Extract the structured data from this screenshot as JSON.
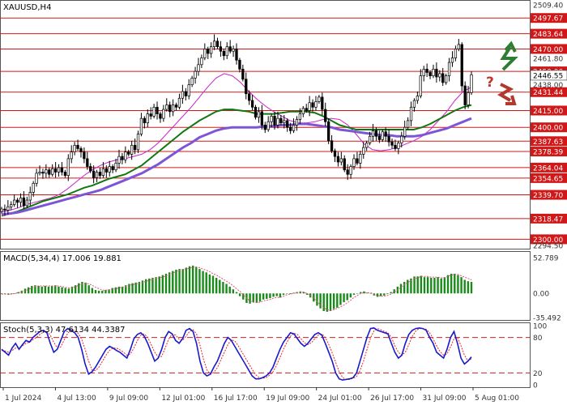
{
  "chart_data": [
    {
      "type": "line",
      "chart_role": "candlestick price chart",
      "title": "XAUUSD,H4",
      "ylim": [
        2294.5,
        2509.4
      ],
      "axis_ticks": [
        "2509.40",
        "2461.80",
        "2438.00",
        "2294.50"
      ],
      "highlighted_levels": [
        {
          "value": 2497.67,
          "label": "2497.67"
        },
        {
          "value": 2483.64,
          "label": "2483.64"
        },
        {
          "value": 2470.0,
          "label": "2470.00"
        },
        {
          "value": 2450.0,
          "label": "2450.00"
        },
        {
          "value": 2431.44,
          "label": "2431.44"
        },
        {
          "value": 2415.0,
          "label": "2415.00"
        },
        {
          "value": 2400.0,
          "label": "2400.00"
        },
        {
          "value": 2387.63,
          "label": "2387.63"
        },
        {
          "value": 2378.39,
          "label": "2378.39"
        },
        {
          "value": 2364.04,
          "label": "2364.04"
        },
        {
          "value": 2354.65,
          "label": "2354.65"
        },
        {
          "value": 2339.7,
          "label": "2339.70"
        },
        {
          "value": 2318.47,
          "label": "2318.47"
        },
        {
          "value": 2300.0,
          "label": "2300.00"
        }
      ],
      "current_price": {
        "value": 2446.5,
        "label": "2446.55"
      },
      "x_labels": [
        "1 Jul 2024",
        "4 Jul 13:00",
        "9 Jul 09:00",
        "12 Jul 01:00",
        "16 Jul 17:00",
        "19 Jul 09:00",
        "24 Jul 01:00",
        "26 Jul 17:00",
        "31 Jul 09:00",
        "5 Aug 01:00"
      ],
      "close_series": [
        2327,
        2326,
        2329,
        2331,
        2335,
        2333,
        2337,
        2330,
        2335,
        2342,
        2350,
        2359,
        2360,
        2359,
        2362,
        2358,
        2363,
        2360,
        2364,
        2360,
        2357,
        2372,
        2378,
        2384,
        2381,
        2378,
        2372,
        2365,
        2361,
        2355,
        2360,
        2357,
        2363,
        2360,
        2365,
        2362,
        2368,
        2374,
        2371,
        2378,
        2376,
        2384,
        2380,
        2394,
        2408,
        2404,
        2412,
        2410,
        2418,
        2412,
        2408,
        2416,
        2420,
        2414,
        2420,
        2418,
        2426,
        2432,
        2428,
        2438,
        2444,
        2450,
        2456,
        2462,
        2470,
        2466,
        2472,
        2477,
        2472,
        2468,
        2464,
        2472,
        2468,
        2470,
        2460,
        2452,
        2443,
        2430,
        2424,
        2418,
        2409,
        2414,
        2402,
        2398,
        2405,
        2410,
        2402,
        2408,
        2404,
        2406,
        2400,
        2397,
        2402,
        2407,
        2412,
        2417,
        2415,
        2422,
        2418,
        2423,
        2427,
        2416,
        2405,
        2388,
        2379,
        2374,
        2369,
        2372,
        2362,
        2358,
        2365,
        2372,
        2368,
        2376,
        2382,
        2386,
        2392,
        2397,
        2392,
        2389,
        2396,
        2392,
        2387,
        2384,
        2381,
        2386,
        2392,
        2400,
        2406,
        2418,
        2424,
        2428,
        2446,
        2452,
        2449,
        2446,
        2452,
        2445,
        2448,
        2440,
        2446,
        2458,
        2462,
        2470,
        2474,
        2437,
        2420,
        2431,
        2447
      ],
      "ma_lines": [
        {
          "color": "#cc22cc",
          "values": [
            2324,
            2326,
            2328,
            2331,
            2333,
            2335,
            2337,
            2340,
            2345,
            2351,
            2357,
            2362,
            2366,
            2369,
            2371,
            2372,
            2374,
            2376,
            2380,
            2386,
            2394,
            2402,
            2410,
            2418,
            2427,
            2436,
            2444,
            2448,
            2446,
            2440,
            2432,
            2425,
            2419,
            2414,
            2410,
            2406,
            2404,
            2404,
            2405,
            2407,
            2408,
            2407,
            2402,
            2394,
            2385,
            2380,
            2379,
            2380,
            2382,
            2385,
            2388,
            2392,
            2398,
            2406,
            2414,
            2424,
            2432,
            2436
          ]
        },
        {
          "color": "#117711",
          "values": [
            2321,
            2323,
            2325,
            2328,
            2331,
            2334,
            2336,
            2338,
            2340,
            2343,
            2346,
            2348,
            2351,
            2354,
            2356,
            2358,
            2362,
            2366,
            2372,
            2378,
            2384,
            2390,
            2396,
            2401,
            2406,
            2410,
            2414,
            2416,
            2416,
            2415,
            2414,
            2412,
            2412,
            2412,
            2413,
            2414,
            2414,
            2414,
            2413,
            2410,
            2406,
            2402,
            2400,
            2398,
            2398,
            2398,
            2398,
            2398,
            2398,
            2398,
            2398,
            2400,
            2403,
            2407,
            2411,
            2415,
            2418,
            2420
          ]
        },
        {
          "color": "#7e55d6",
          "values": [
            2322,
            2323,
            2324,
            2326,
            2328,
            2330,
            2332,
            2334,
            2336,
            2338,
            2340,
            2342,
            2344,
            2347,
            2350,
            2353,
            2356,
            2359,
            2363,
            2367,
            2372,
            2377,
            2382,
            2386,
            2391,
            2394,
            2397,
            2399,
            2400,
            2400,
            2400,
            2400,
            2401,
            2401,
            2402,
            2402,
            2403,
            2403,
            2402,
            2401,
            2400,
            2398,
            2397,
            2396,
            2395,
            2394,
            2393,
            2393,
            2392,
            2392,
            2392,
            2393,
            2395,
            2397,
            2399,
            2402,
            2405,
            2408
          ]
        }
      ]
    },
    {
      "type": "bar",
      "chart_role": "oscillator",
      "title": "MACD(5,34,4) 17.006 19.881",
      "ylim": [
        -35.492,
        52.789
      ],
      "axis_ticks": [
        "52.789",
        "0.00",
        "-35.492"
      ],
      "values": [
        -1,
        -1,
        -2,
        -1,
        0,
        2,
        4,
        7,
        9,
        11,
        12,
        11,
        10,
        11,
        10,
        11,
        12,
        10,
        9,
        8,
        7,
        10,
        12,
        15,
        17,
        16,
        12,
        8,
        5,
        4,
        4,
        5,
        6,
        8,
        9,
        10,
        10,
        12,
        14,
        15,
        16,
        17,
        19,
        21,
        22,
        23,
        24,
        25,
        27,
        29,
        31,
        33,
        35,
        36,
        36,
        38,
        40,
        41,
        39,
        36,
        33,
        31,
        28,
        26,
        23,
        20,
        17,
        14,
        10,
        6,
        2,
        -4,
        -9,
        -14,
        -15,
        -13,
        -14,
        -12,
        -9,
        -8,
        -7,
        -5,
        -4,
        -6,
        -2,
        0,
        -1,
        1,
        2,
        3,
        2,
        -2,
        -6,
        -12,
        -18,
        -22,
        -26,
        -27,
        -26,
        -23,
        -21,
        -17,
        -13,
        -10,
        -6,
        -2,
        0,
        2,
        3,
        1,
        0,
        -3,
        -5,
        -4,
        -3,
        -1,
        2,
        6,
        10,
        14,
        17,
        20,
        22,
        25,
        25,
        26,
        24,
        24,
        23,
        23,
        24,
        22,
        24,
        27,
        29,
        29,
        27,
        24,
        20,
        18,
        17
      ],
      "signal": [
        -1,
        -1,
        -1,
        -1,
        0,
        1,
        2,
        4,
        6,
        8,
        10,
        11,
        11,
        11,
        11,
        11,
        11,
        11,
        10,
        9,
        8,
        8,
        10,
        12,
        14,
        15,
        14,
        12,
        9,
        7,
        5,
        5,
        5,
        6,
        7,
        8,
        9,
        10,
        12,
        13,
        14,
        15,
        16,
        18,
        19,
        21,
        22,
        23,
        24,
        26,
        28,
        30,
        32,
        34,
        35,
        36,
        37,
        39,
        39,
        38,
        36,
        34,
        32,
        29,
        27,
        24,
        21,
        18,
        15,
        11,
        7,
        3,
        -2,
        -7,
        -11,
        -13,
        -13,
        -13,
        -11,
        -10,
        -9,
        -7,
        -6,
        -6,
        -4,
        -2,
        -1,
        0,
        1,
        2,
        2,
        0,
        -3,
        -7,
        -12,
        -17,
        -21,
        -24,
        -25,
        -24,
        -22,
        -20,
        -17,
        -14,
        -10,
        -6,
        -3,
        0,
        1,
        1,
        1,
        -1,
        -3,
        -4,
        -4,
        -3,
        -1,
        2,
        5,
        9,
        13,
        16,
        19,
        22,
        23,
        25,
        25,
        25,
        24,
        24,
        24,
        23,
        23,
        25,
        27,
        28,
        28,
        26,
        24,
        22,
        20
      ]
    },
    {
      "type": "line",
      "chart_role": "oscillator",
      "title": "Stoch(5,3,3) 47.6134 44.3387",
      "ylim": [
        0,
        100
      ],
      "axis_ticks": [
        "100",
        "80",
        "20",
        "0"
      ],
      "series": [
        {
          "color": "#1a1acc",
          "values": [
            60,
            55,
            50,
            62,
            70,
            60,
            68,
            75,
            72,
            80,
            85,
            90,
            92,
            88,
            70,
            55,
            60,
            75,
            90,
            95,
            92,
            88,
            80,
            60,
            35,
            18,
            22,
            30,
            40,
            50,
            60,
            65,
            62,
            58,
            55,
            50,
            45,
            60,
            78,
            85,
            88,
            82,
            70,
            55,
            40,
            45,
            60,
            80,
            90,
            86,
            75,
            70,
            78,
            92,
            95,
            90,
            70,
            40,
            20,
            15,
            18,
            30,
            40,
            55,
            70,
            80,
            75,
            65,
            55,
            45,
            35,
            25,
            15,
            10,
            10,
            12,
            15,
            20,
            30,
            45,
            60,
            72,
            80,
            88,
            86,
            78,
            70,
            65,
            70,
            78,
            85,
            88,
            84,
            70,
            55,
            40,
            20,
            10,
            8,
            9,
            10,
            12,
            20,
            40,
            60,
            80,
            95,
            96,
            92,
            90,
            88,
            86,
            70,
            55,
            45,
            50,
            70,
            85,
            92,
            95,
            96,
            95,
            92,
            80,
            70,
            55,
            50,
            45,
            60,
            80,
            90,
            70,
            45,
            35,
            40,
            47
          ]
        },
        {
          "color": "#ee2222",
          "values": [
            58,
            57,
            55,
            58,
            62,
            63,
            66,
            70,
            72,
            76,
            80,
            85,
            89,
            90,
            84,
            72,
            62,
            64,
            76,
            87,
            93,
            92,
            87,
            77,
            60,
            40,
            25,
            24,
            30,
            40,
            50,
            58,
            62,
            62,
            59,
            55,
            50,
            52,
            62,
            75,
            84,
            86,
            80,
            68,
            55,
            47,
            48,
            62,
            77,
            86,
            84,
            77,
            75,
            82,
            90,
            93,
            86,
            67,
            43,
            25,
            18,
            21,
            29,
            42,
            55,
            68,
            76,
            74,
            66,
            56,
            46,
            36,
            26,
            17,
            12,
            11,
            12,
            16,
            22,
            33,
            46,
            60,
            72,
            82,
            87,
            85,
            78,
            71,
            68,
            71,
            78,
            84,
            86,
            80,
            68,
            54,
            38,
            22,
            12,
            9,
            9,
            11,
            14,
            24,
            40,
            60,
            79,
            91,
            95,
            93,
            90,
            88,
            80,
            66,
            55,
            50,
            55,
            68,
            82,
            91,
            95,
            95,
            94,
            88,
            78,
            66,
            56,
            50,
            52,
            64,
            78,
            80,
            66,
            50,
            40,
            44
          ]
        }
      ],
      "ref_levels": [
        80,
        20
      ]
    }
  ],
  "annotations": {
    "question_mark": "?"
  }
}
